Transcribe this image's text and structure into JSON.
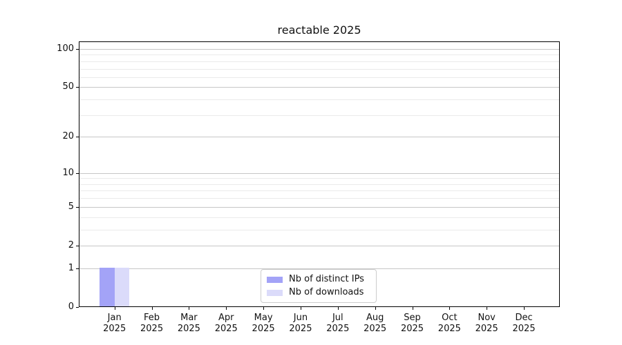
{
  "chart_data": {
    "type": "bar",
    "title": "reactable 2025",
    "categories": [
      "Jan",
      "Feb",
      "Mar",
      "Apr",
      "May",
      "Jun",
      "Jul",
      "Aug",
      "Sep",
      "Oct",
      "Nov",
      "Dec"
    ],
    "category_year": "2025",
    "series": [
      {
        "name": "Nb of distinct IPs",
        "color": "#a3a3f7",
        "values": [
          1,
          0,
          0,
          0,
          0,
          0,
          0,
          0,
          0,
          0,
          0,
          0
        ]
      },
      {
        "name": "Nb of downloads",
        "color": "#dbdbfa",
        "values": [
          1,
          0,
          0,
          0,
          0,
          0,
          0,
          0,
          0,
          0,
          0,
          0
        ]
      }
    ],
    "xlabel": "",
    "ylabel": "",
    "y_axis": {
      "scale": "log1p",
      "major_ticks": [
        0,
        1,
        2,
        5,
        10,
        20,
        50,
        100
      ],
      "minor_ticks": [
        3,
        4,
        6,
        7,
        8,
        9,
        30,
        40,
        60,
        70,
        80,
        90
      ],
      "ylim": [
        0,
        115
      ]
    },
    "grid": "horizontal, major and minor",
    "legend_position": "bottom-center-inside"
  },
  "colors": {
    "bar_distinct_ips": "#a3a3f7",
    "bar_downloads": "#dbdbfa",
    "grid_major": "#c6c6c6",
    "grid_minor": "#eaeaea",
    "axis": "#000000",
    "text": "#111111",
    "legend_border": "#cccccc",
    "background": "#ffffff"
  }
}
